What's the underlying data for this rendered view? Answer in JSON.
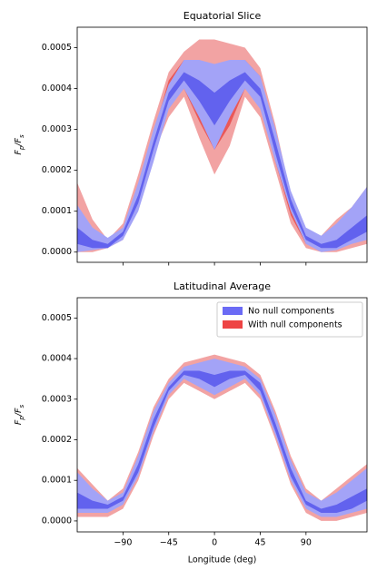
{
  "chart_data": [
    {
      "type": "band",
      "title": "Equatorial Slice",
      "ylabel": [
        "F",
        "p",
        "/F",
        "s"
      ],
      "x": [
        -135,
        -120,
        -105,
        -90,
        -75,
        -60,
        -45,
        -30,
        -15,
        0,
        15,
        30,
        45,
        60,
        75,
        90,
        105,
        120,
        135,
        150
      ],
      "xlim": [
        -135,
        150
      ],
      "xticks": [
        -90,
        -45,
        0,
        45,
        90
      ],
      "ylim": [
        -2.5e-05,
        0.00055
      ],
      "yticks": [
        {
          "value": 0,
          "label": "0.0000"
        },
        {
          "value": 0.0001,
          "label": "0.0001"
        },
        {
          "value": 0.0002,
          "label": "0.0002"
        },
        {
          "value": 0.0003,
          "label": "0.0003"
        },
        {
          "value": 0.0004,
          "label": "0.0004"
        },
        {
          "value": 0.0005,
          "label": "0.0005"
        }
      ],
      "series": [
        {
          "name": "With null components",
          "color": "#ee4444",
          "bands": [
            {
              "color": "#f2a3a3",
              "upper": [
                0.00017,
                8e-05,
                3e-05,
                7e-05,
                0.00019,
                0.00032,
                0.00044,
                0.00049,
                0.00052,
                0.00052,
                0.00051,
                0.0005,
                0.00045,
                0.00031,
                0.00014,
                4e-05,
                4e-05,
                8e-05,
                0.00011,
                0.00016
              ],
              "lower": [
                0,
                0,
                1e-05,
                3e-05,
                0.00011,
                0.00024,
                0.00033,
                0.00038,
                0.00028,
                0.00019,
                0.00026,
                0.00038,
                0.00033,
                0.0002,
                7e-05,
                1e-05,
                0,
                0,
                1e-05,
                2e-05
              ]
            },
            {
              "color": "#ea5858",
              "upper": [
                0.0001,
                5e-05,
                2e-05,
                5e-05,
                0.00016,
                0.00029,
                0.00042,
                0.00047,
                0.00046,
                0.00044,
                0.00046,
                0.00047,
                0.00043,
                0.00028,
                0.00012,
                3e-05,
                3e-05,
                6e-05,
                9e-05,
                0.00013
              ],
              "lower": [
                1e-05,
                1e-05,
                1e-05,
                4e-05,
                0.00013,
                0.00026,
                0.00036,
                0.0004,
                0.00032,
                0.00025,
                0.00031,
                0.0004,
                0.00036,
                0.00022,
                9e-05,
                2e-05,
                1e-05,
                1e-05,
                3e-05,
                5e-05
              ]
            }
          ]
        },
        {
          "name": "No null components",
          "color": "#6b6bf5",
          "bands": [
            {
              "color": "#a3a3f7",
              "upper": [
                0.000115,
                6e-05,
                3.5e-05,
                6e-05,
                0.00017,
                0.0003,
                0.00041,
                0.00047,
                0.00047,
                0.00046,
                0.00047,
                0.00047,
                0.00043,
                0.0003,
                0.00015,
                6e-05,
                4e-05,
                7e-05,
                0.00011,
                0.00016
              ],
              "lower": [
                0,
                5e-06,
                1e-05,
                3e-05,
                0.0001,
                0.00022,
                0.00035,
                0.0004,
                0.00033,
                0.00025,
                0.00033,
                0.0004,
                0.00035,
                0.00022,
                0.0001,
                2e-05,
                0,
                5e-06,
                2e-05,
                3e-05
              ]
            },
            {
              "color": "#6262ee",
              "upper": [
                6e-05,
                3e-05,
                2e-05,
                5e-05,
                0.00014,
                0.00027,
                0.00039,
                0.00044,
                0.00042,
                0.00039,
                0.00042,
                0.00044,
                0.0004,
                0.00027,
                0.00013,
                4e-05,
                2e-05,
                3e-05,
                6e-05,
                9e-05
              ],
              "lower": [
                2e-05,
                1e-05,
                1e-05,
                4e-05,
                0.00012,
                0.00025,
                0.00037,
                0.00042,
                0.00037,
                0.00031,
                0.00037,
                0.00042,
                0.00038,
                0.00024,
                0.00011,
                3e-05,
                1e-05,
                1e-05,
                3e-05,
                5e-05
              ]
            }
          ]
        }
      ]
    },
    {
      "type": "band",
      "title": "Latitudinal Average",
      "ylabel": [
        "F",
        "p",
        "/F",
        "s"
      ],
      "xlabel": "Longitude (deg)",
      "x": [
        -135,
        -120,
        -105,
        -90,
        -75,
        -60,
        -45,
        -30,
        -15,
        0,
        15,
        30,
        45,
        60,
        75,
        90,
        105,
        120,
        135,
        150
      ],
      "xlim": [
        -135,
        150
      ],
      "xticks": [
        {
          "value": -90,
          "label": "−90"
        },
        {
          "value": -45,
          "label": "−45"
        },
        0,
        45,
        90
      ],
      "ylim": [
        -2.7e-05,
        0.00055
      ],
      "yticks": [
        {
          "value": 0,
          "label": "0.0000"
        },
        {
          "value": 0.0001,
          "label": "0.0001"
        },
        {
          "value": 0.0002,
          "label": "0.0002"
        },
        {
          "value": 0.0003,
          "label": "0.0003"
        },
        {
          "value": 0.0004,
          "label": "0.0004"
        },
        {
          "value": 0.0005,
          "label": "0.0005"
        }
      ],
      "legend": "upper right",
      "series": [
        {
          "name": "No null components",
          "color": "#6b6bf5",
          "bands": []
        },
        {
          "name": "With null components",
          "color": "#ee4444",
          "bands": [
            {
              "color": "#f2a3a3",
              "upper": [
                0.00013,
                9e-05,
                5e-05,
                8e-05,
                0.00017,
                0.00028,
                0.00035,
                0.00039,
                0.0004,
                0.00041,
                0.0004,
                0.00039,
                0.00036,
                0.00027,
                0.00016,
                8e-05,
                5e-05,
                8e-05,
                0.00011,
                0.00014
              ],
              "lower": [
                1e-05,
                1e-05,
                1e-05,
                3e-05,
                0.0001,
                0.00021,
                0.0003,
                0.00034,
                0.00032,
                0.0003,
                0.00032,
                0.00034,
                0.0003,
                0.0002,
                9e-05,
                2e-05,
                0,
                0,
                1e-05,
                2e-05
              ]
            }
          ]
        },
        {
          "name": "No null components",
          "color": "#6b6bf5",
          "bands": [
            {
              "color": "#a3a3f7",
              "upper": [
                0.00012,
                8e-05,
                5e-05,
                7e-05,
                0.00016,
                0.00027,
                0.00034,
                0.00038,
                0.00039,
                0.0004,
                0.00039,
                0.00038,
                0.00035,
                0.00026,
                0.00015,
                7e-05,
                5e-05,
                7e-05,
                0.0001,
                0.00013
              ],
              "lower": [
                2e-05,
                2e-05,
                2e-05,
                4e-05,
                0.00011,
                0.00022,
                0.00031,
                0.00035,
                0.00033,
                0.00031,
                0.00033,
                0.00035,
                0.00031,
                0.00021,
                0.0001,
                3e-05,
                1e-05,
                1e-05,
                2e-05,
                3e-05
              ]
            },
            {
              "color": "#6262ee",
              "upper": [
                7e-05,
                5e-05,
                4e-05,
                6e-05,
                0.00014,
                0.00025,
                0.00033,
                0.00037,
                0.00037,
                0.00036,
                0.00037,
                0.00037,
                0.00034,
                0.00024,
                0.00013,
                5e-05,
                3e-05,
                4e-05,
                6e-05,
                8e-05
              ],
              "lower": [
                3e-05,
                3e-05,
                3e-05,
                5e-05,
                0.00012,
                0.00023,
                0.00032,
                0.00036,
                0.00035,
                0.00033,
                0.00035,
                0.00036,
                0.00032,
                0.00022,
                0.00011,
                4e-05,
                2e-05,
                2e-05,
                3e-05,
                5e-05
              ]
            }
          ]
        }
      ]
    }
  ]
}
